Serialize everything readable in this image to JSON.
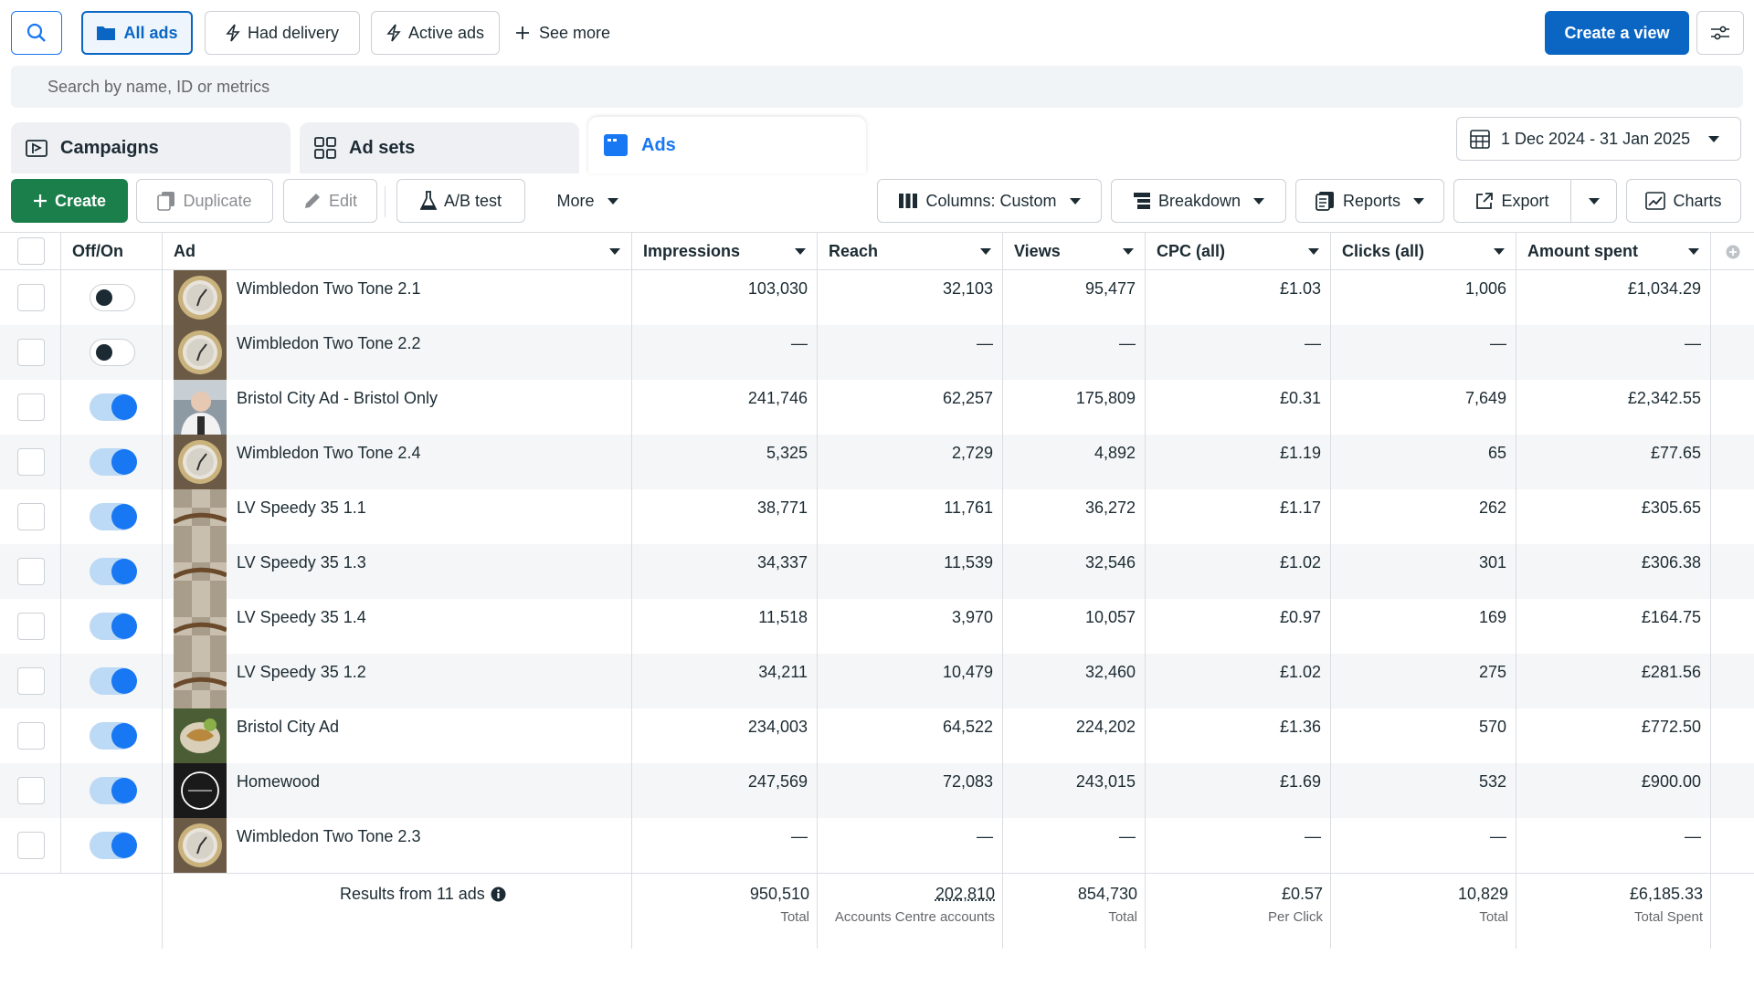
{
  "filters": {
    "all_ads": "All ads",
    "had_delivery": "Had delivery",
    "active_ads": "Active ads",
    "see_more": "See more",
    "create_view": "Create a view"
  },
  "search": {
    "placeholder": "Search by name, ID or metrics"
  },
  "tabs": {
    "campaigns": "Campaigns",
    "ad_sets": "Ad sets",
    "ads": "Ads"
  },
  "date_range": "1 Dec 2024 - 31 Jan 2025",
  "toolbar": {
    "create": "Create",
    "duplicate": "Duplicate",
    "edit": "Edit",
    "ab_test": "A/B test",
    "more": "More",
    "columns": "Columns: Custom",
    "breakdown": "Breakdown",
    "reports": "Reports",
    "export": "Export",
    "charts": "Charts"
  },
  "columns": {
    "offon": "Off/On",
    "ad": "Ad",
    "impressions": "Impressions",
    "reach": "Reach",
    "views": "Views",
    "cpc": "CPC (all)",
    "clicks": "Clicks (all)",
    "amount": "Amount spent"
  },
  "rows": [
    {
      "name": "Wimbledon Two Tone 2.1",
      "on": false,
      "thumb": "watch",
      "impressions": "103,030",
      "reach": "32,103",
      "views": "95,477",
      "cpc": "£1.03",
      "clicks": "1,006",
      "amount": "£1,034.29"
    },
    {
      "name": "Wimbledon Two Tone 2.2",
      "on": false,
      "thumb": "watch",
      "impressions": "—",
      "reach": "—",
      "views": "—",
      "cpc": "—",
      "clicks": "—",
      "amount": "—"
    },
    {
      "name": "Bristol City Ad - Bristol Only",
      "on": true,
      "thumb": "person",
      "impressions": "241,746",
      "reach": "62,257",
      "views": "175,809",
      "cpc": "£0.31",
      "clicks": "7,649",
      "amount": "£2,342.55"
    },
    {
      "name": "Wimbledon Two Tone 2.4",
      "on": true,
      "thumb": "watch",
      "impressions": "5,325",
      "reach": "2,729",
      "views": "4,892",
      "cpc": "£1.19",
      "clicks": "65",
      "amount": "£77.65"
    },
    {
      "name": "LV Speedy 35 1.1",
      "on": true,
      "thumb": "check",
      "impressions": "38,771",
      "reach": "11,761",
      "views": "36,272",
      "cpc": "£1.17",
      "clicks": "262",
      "amount": "£305.65"
    },
    {
      "name": "LV Speedy 35 1.3",
      "on": true,
      "thumb": "check",
      "impressions": "34,337",
      "reach": "11,539",
      "views": "32,546",
      "cpc": "£1.02",
      "clicks": "301",
      "amount": "£306.38"
    },
    {
      "name": "LV Speedy 35 1.4",
      "on": true,
      "thumb": "check",
      "impressions": "11,518",
      "reach": "3,970",
      "views": "10,057",
      "cpc": "£0.97",
      "clicks": "169",
      "amount": "£164.75"
    },
    {
      "name": "LV Speedy 35 1.2",
      "on": true,
      "thumb": "check",
      "impressions": "34,211",
      "reach": "10,479",
      "views": "32,460",
      "cpc": "£1.02",
      "clicks": "275",
      "amount": "£281.56"
    },
    {
      "name": "Bristol City Ad",
      "on": true,
      "thumb": "food",
      "impressions": "234,003",
      "reach": "64,522",
      "views": "224,202",
      "cpc": "£1.36",
      "clicks": "570",
      "amount": "£772.50"
    },
    {
      "name": "Homewood",
      "on": true,
      "thumb": "logo",
      "impressions": "247,569",
      "reach": "72,083",
      "views": "243,015",
      "cpc": "£1.69",
      "clicks": "532",
      "amount": "£900.00"
    },
    {
      "name": "Wimbledon Two Tone 2.3",
      "on": true,
      "thumb": "watch",
      "impressions": "—",
      "reach": "—",
      "views": "—",
      "cpc": "—",
      "clicks": "—",
      "amount": "—"
    }
  ],
  "totals": {
    "results": "Results from 11 ads",
    "impressions": "950,510",
    "impressions_label": "Total",
    "reach": "202,810",
    "reach_label": "Accounts Centre accounts",
    "views": "854,730",
    "views_label": "Total",
    "cpc": "£0.57",
    "cpc_label": "Per Click",
    "clicks": "10,829",
    "clicks_label": "Total",
    "amount": "£6,185.33",
    "amount_label": "Total Spent"
  },
  "colors": {
    "accent": "#1877f2",
    "primary_button": "#0a66c2",
    "create_button": "#1a7f4b",
    "toggle_on": "#1877f2"
  }
}
